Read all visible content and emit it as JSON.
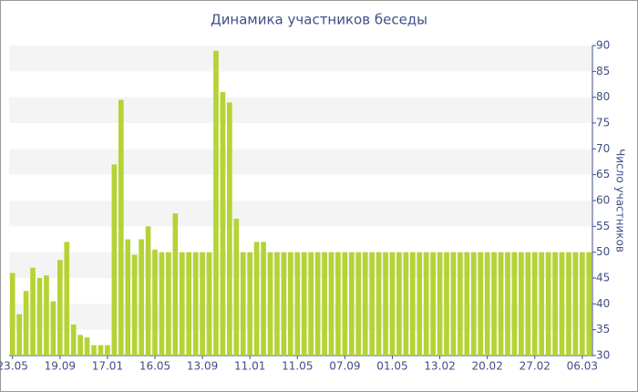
{
  "chart_data": {
    "type": "bar",
    "title": "Динамика участников беседы",
    "y_axis_label": "Число участников",
    "categories": [
      "23.05",
      null,
      null,
      null,
      null,
      null,
      null,
      "19.09",
      null,
      null,
      null,
      null,
      null,
      null,
      "17.01",
      null,
      null,
      null,
      null,
      null,
      null,
      "16.05",
      null,
      null,
      null,
      null,
      null,
      null,
      "13.09",
      null,
      null,
      null,
      null,
      null,
      null,
      "11.01",
      null,
      null,
      null,
      null,
      null,
      null,
      "11.05",
      null,
      null,
      null,
      null,
      null,
      null,
      "07.09",
      null,
      null,
      null,
      null,
      null,
      null,
      "01.05",
      null,
      null,
      null,
      null,
      null,
      null,
      "13.02",
      null,
      null,
      null,
      null,
      null,
      null,
      "20.02",
      null,
      null,
      null,
      null,
      null,
      null,
      "27.02",
      null,
      null,
      null,
      null,
      null,
      null,
      "06.03",
      null
    ],
    "values": [
      46,
      38,
      42.5,
      47,
      45,
      45.5,
      40.5,
      48.5,
      52,
      36,
      34,
      33.5,
      32,
      32,
      32,
      67,
      79.5,
      52.5,
      49.5,
      52.5,
      55,
      50.5,
      50,
      50,
      57.5,
      50,
      50,
      50,
      50,
      50,
      89,
      81,
      79,
      56.5,
      50,
      50,
      52,
      52,
      50,
      50,
      50,
      50,
      50,
      50,
      50,
      50,
      50,
      50,
      50,
      50,
      50,
      50,
      50,
      50,
      50,
      50,
      50,
      50,
      50,
      50,
      50,
      50,
      50,
      50,
      50,
      50,
      50,
      50,
      50,
      50,
      50,
      50,
      50,
      50,
      50,
      50,
      50,
      50,
      50,
      50,
      50,
      50,
      50,
      50,
      50,
      50
    ],
    "color": "#b5d334",
    "ylim": [
      30,
      90
    ],
    "yticks": [
      30,
      35,
      40,
      45,
      50,
      55,
      60,
      65,
      70,
      75,
      80,
      85,
      90
    ],
    "grid": true,
    "y_axis_side": "right"
  }
}
